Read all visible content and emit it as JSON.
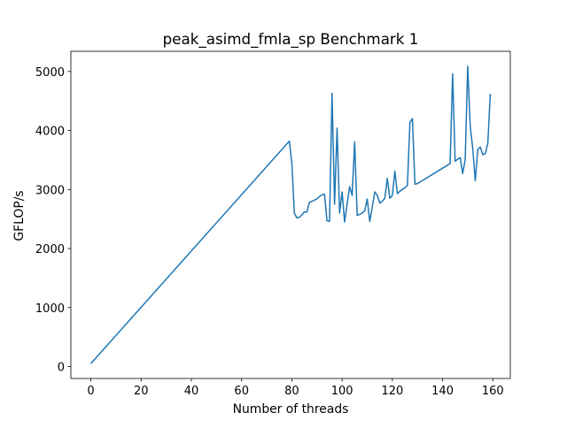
{
  "chart_data": {
    "type": "line",
    "title": "peak_asimd_fmla_sp Benchmark 1",
    "xlabel": "Number of threads",
    "ylabel": "GFLOP/s",
    "color": "#1f77b4",
    "x": [
      0,
      79,
      80,
      81,
      82,
      83,
      84,
      85,
      86,
      87,
      88,
      89,
      90,
      91,
      92,
      93,
      94,
      95,
      96,
      97,
      98,
      99,
      100,
      101,
      102,
      103,
      104,
      105,
      106,
      107,
      108,
      109,
      110,
      111,
      112,
      113,
      114,
      115,
      116,
      117,
      118,
      119,
      120,
      121,
      122,
      123,
      124,
      125,
      126,
      127,
      128,
      129,
      130,
      143,
      144,
      145,
      146,
      147,
      148,
      149,
      150,
      151,
      152,
      153,
      154,
      155,
      156,
      157,
      158,
      159
    ],
    "values": [
      50,
      3820,
      3450,
      2600,
      2520,
      2530,
      2570,
      2620,
      2620,
      2780,
      2800,
      2820,
      2840,
      2880,
      2910,
      2920,
      2470,
      2460,
      4630,
      2750,
      4040,
      2600,
      2960,
      2450,
      2750,
      3050,
      2900,
      3810,
      2560,
      2580,
      2600,
      2640,
      2840,
      2460,
      2700,
      2960,
      2900,
      2770,
      2800,
      2850,
      3190,
      2850,
      2900,
      3310,
      2930,
      2970,
      3000,
      3030,
      3070,
      4140,
      4200,
      3090,
      3100,
      3440,
      4960,
      3480,
      3510,
      3540,
      3270,
      3510,
      5090,
      4070,
      3700,
      3150,
      3680,
      3720,
      3590,
      3610,
      3780,
      4620
    ],
    "xlim": [
      -7.95,
      166.95
    ],
    "ylim": [
      -202,
      5342
    ],
    "xticks": [
      0,
      20,
      40,
      60,
      80,
      100,
      120,
      140,
      160
    ],
    "yticks": [
      0,
      1000,
      2000,
      3000,
      4000,
      5000
    ]
  }
}
